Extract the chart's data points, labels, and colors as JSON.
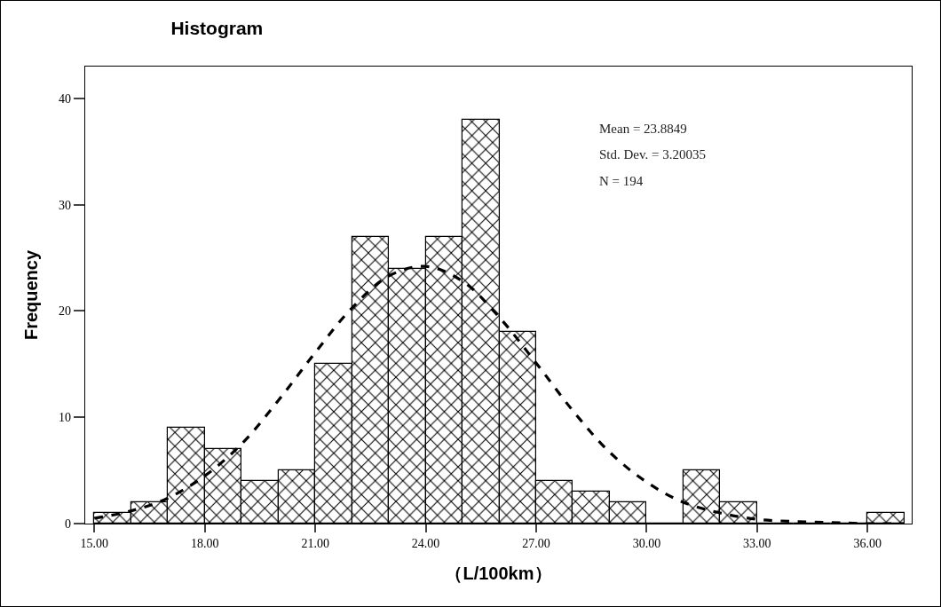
{
  "chart_data": {
    "type": "histogram",
    "title": "Histogram",
    "xlabel": "（L/100km）",
    "ylabel": "Frequency",
    "series": [
      {
        "color": "#000000",
        "bins": [
          15,
          16,
          17,
          18,
          19,
          20,
          21,
          22,
          23,
          24,
          25,
          26,
          27,
          28,
          29,
          30,
          31,
          32,
          33,
          34,
          35,
          36,
          37
        ],
        "values": [
          1,
          2,
          9,
          7,
          4,
          5,
          15,
          27,
          24,
          27,
          38,
          18,
          4,
          3,
          2,
          0,
          5,
          2,
          0,
          0,
          0,
          1
        ]
      },
      {
        "type": "line",
        "color": "#000000",
        "line_style": "dashed",
        "marker": "none",
        "x": [
          15,
          16,
          17,
          18,
          19,
          20,
          21,
          22,
          23,
          24,
          25,
          26,
          27,
          28,
          29,
          30,
          31,
          32,
          33,
          34,
          35,
          36,
          37
        ],
        "values": [
          0.5,
          1.2,
          2.4,
          4.5,
          7.5,
          11.6,
          16.1,
          20.3,
          23.3,
          24.2,
          22.8,
          19.4,
          15.1,
          10.6,
          6.7,
          3.9,
          2.0,
          1.0,
          0.4,
          0.2,
          0.1,
          0,
          0
        ]
      }
    ],
    "xlim": [
      14.75,
      37.2
    ],
    "ylim": [
      0,
      43
    ],
    "xticks": [
      {
        "value": 15,
        "label": "15.00"
      },
      {
        "value": 18,
        "label": "18.00"
      },
      {
        "value": 21,
        "label": "21.00"
      },
      {
        "value": 24,
        "label": "24.00"
      },
      {
        "value": 27,
        "label": "27.00"
      },
      {
        "value": 30,
        "label": "30.00"
      },
      {
        "value": 33,
        "label": "33.00"
      },
      {
        "value": 36,
        "label": "36.00"
      }
    ],
    "yticks": [
      0,
      10,
      20,
      30,
      40
    ],
    "grid": false,
    "legend": false,
    "annotations": [
      "Mean = 23.8849",
      "Std. Dev. = 3.20035",
      "N = 194"
    ]
  }
}
